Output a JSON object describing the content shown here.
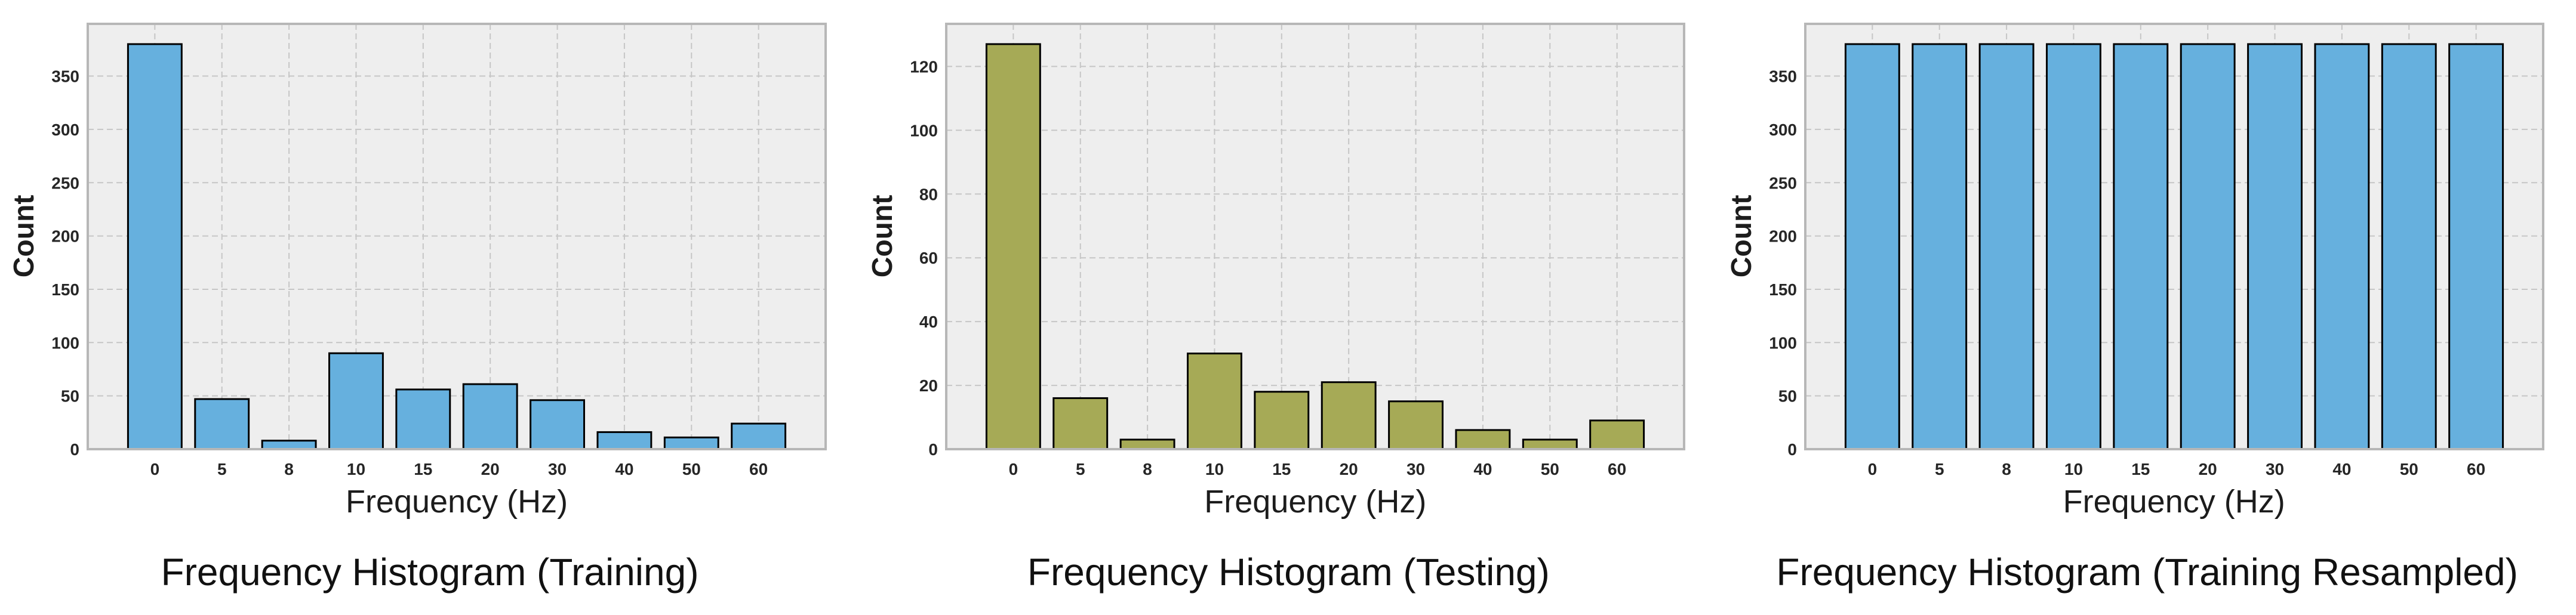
{
  "style": {
    "figure_bg": "#ffffff",
    "plot_bg": "#eeeeee",
    "grid_color": "#c6c6c6",
    "frame_color": "#b7b7b7",
    "tick_label_color": "#262626",
    "text_color": "#1c1c1c"
  },
  "chart_data": [
    {
      "type": "bar",
      "title": "Frequency Histogram (Training)",
      "xlabel": "Frequency (Hz)",
      "ylabel": "Count",
      "categories": [
        "0",
        "5",
        "8",
        "10",
        "15",
        "20",
        "30",
        "40",
        "50",
        "60"
      ],
      "values": [
        380,
        47,
        8,
        90,
        56,
        61,
        46,
        16,
        11,
        24
      ],
      "yticks": [
        0,
        50,
        100,
        150,
        200,
        250,
        300,
        350
      ],
      "ylim": [
        0,
        399
      ],
      "grid": true,
      "legend": "none",
      "bar_color": "#66b0de",
      "bar_edge_color": "#000000"
    },
    {
      "type": "bar",
      "title": "Frequency Histogram (Testing)",
      "xlabel": "Frequency (Hz)",
      "ylabel": "Count",
      "categories": [
        "0",
        "5",
        "8",
        "10",
        "15",
        "20",
        "30",
        "40",
        "50",
        "60"
      ],
      "values": [
        127,
        16,
        3,
        30,
        18,
        21,
        15,
        6,
        3,
        9
      ],
      "yticks": [
        0,
        20,
        40,
        60,
        80,
        100,
        120
      ],
      "ylim": [
        0,
        133.35
      ],
      "grid": true,
      "legend": "none",
      "bar_color": "#a6aa56",
      "bar_edge_color": "#000000"
    },
    {
      "type": "bar",
      "title": "Frequency Histogram (Training Resampled)",
      "xlabel": "Frequency (Hz)",
      "ylabel": "Count",
      "categories": [
        "0",
        "5",
        "8",
        "10",
        "15",
        "20",
        "30",
        "40",
        "50",
        "60"
      ],
      "values": [
        380,
        380,
        380,
        380,
        380,
        380,
        380,
        380,
        380,
        380
      ],
      "yticks": [
        0,
        50,
        100,
        150,
        200,
        250,
        300,
        350
      ],
      "ylim": [
        0,
        399
      ],
      "grid": true,
      "legend": "none",
      "bar_color": "#66b0de",
      "bar_edge_color": "#000000"
    }
  ]
}
